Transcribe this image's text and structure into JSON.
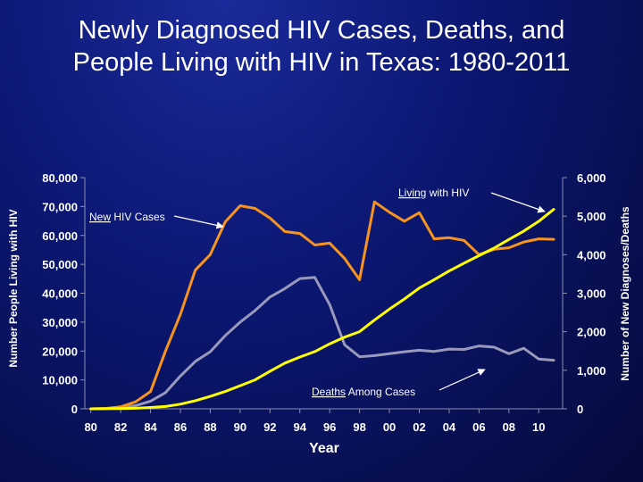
{
  "slide": {
    "title_line1": "Newly Diagnosed HIV Cases, Deaths, and",
    "title_line2": "People Living with HIV in Texas: 1980-2011"
  },
  "chart_data": {
    "type": "line",
    "title": "Newly Diagnosed HIV Cases, Deaths, and People Living with HIV in Texas: 1980-2011",
    "xlabel": "Year",
    "ylabel_left": "Number People Living with HIV",
    "ylabel_right": "Number of New Diagnoses/Deaths",
    "x": [
      1980,
      1981,
      1982,
      1983,
      1984,
      1985,
      1986,
      1987,
      1988,
      1989,
      1990,
      1991,
      1992,
      1993,
      1994,
      1995,
      1996,
      1997,
      1998,
      1999,
      2000,
      2001,
      2002,
      2003,
      2004,
      2005,
      2006,
      2007,
      2008,
      2009,
      2010,
      2011
    ],
    "xlim": [
      1980,
      2011
    ],
    "x_ticks": [
      1980,
      1982,
      1984,
      1986,
      1988,
      1990,
      1992,
      1994,
      1996,
      1998,
      2000,
      2002,
      2004,
      2006,
      2008,
      2010
    ],
    "x_tick_labels": [
      "80",
      "82",
      "84",
      "86",
      "88",
      "90",
      "92",
      "94",
      "96",
      "98",
      "00",
      "02",
      "04",
      "06",
      "08",
      "10"
    ],
    "ylim_left": [
      0,
      80000
    ],
    "y_ticks_left": [
      0,
      10000,
      20000,
      30000,
      40000,
      50000,
      60000,
      70000,
      80000
    ],
    "y_tick_labels_left": [
      "0",
      "10,000",
      "20,000",
      "30,000",
      "40,000",
      "50,000",
      "60,000",
      "70,000",
      "80,000"
    ],
    "ylim_right": [
      0,
      6000
    ],
    "y_ticks_right": [
      0,
      1000,
      2000,
      3000,
      4000,
      5000,
      6000
    ],
    "y_tick_labels_right": [
      "0",
      "1,000",
      "2,000",
      "3,000",
      "4,000",
      "5,000",
      "6,000"
    ],
    "grid": false,
    "series": [
      {
        "name": "New HIV Cases",
        "axis": "right",
        "color": "#f7941d",
        "values": [
          0,
          10,
          50,
          180,
          450,
          1500,
          2450,
          3600,
          4000,
          4850,
          5270,
          5200,
          4950,
          4600,
          4550,
          4250,
          4300,
          3900,
          3350,
          5370,
          5100,
          4870,
          5090,
          4410,
          4440,
          4370,
          4000,
          4140,
          4180,
          4330,
          4410,
          4400
        ]
      },
      {
        "name": "Deaths",
        "axis": "right",
        "color": "#9999bb",
        "values": [
          0,
          10,
          30,
          80,
          200,
          420,
          850,
          1230,
          1480,
          1900,
          2250,
          2550,
          2900,
          3120,
          3380,
          3410,
          2700,
          1660,
          1350,
          1380,
          1430,
          1480,
          1520,
          1490,
          1550,
          1540,
          1630,
          1600,
          1430,
          1570,
          1290,
          1260
        ]
      },
      {
        "name": "Living",
        "axis": "left",
        "color": "#ffff00",
        "values": [
          0,
          20,
          80,
          200,
          450,
          800,
          1600,
          2800,
          4300,
          6000,
          8000,
          10000,
          13000,
          15800,
          17900,
          19800,
          22500,
          24800,
          26700,
          30700,
          34500,
          38000,
          41800,
          44700,
          47700,
          50400,
          53000,
          55600,
          58600,
          61500,
          64900,
          69000
        ]
      }
    ],
    "annotations": [
      {
        "text_underlined": "Living",
        "text_rest": " with HIV",
        "points_to": "Living"
      },
      {
        "text_underlined": "New",
        "text_rest": " HIV Cases",
        "points_to": "New HIV Cases"
      },
      {
        "text_underlined": "Deaths",
        "text_rest": " Among Cases",
        "points_to": "Deaths"
      }
    ]
  }
}
